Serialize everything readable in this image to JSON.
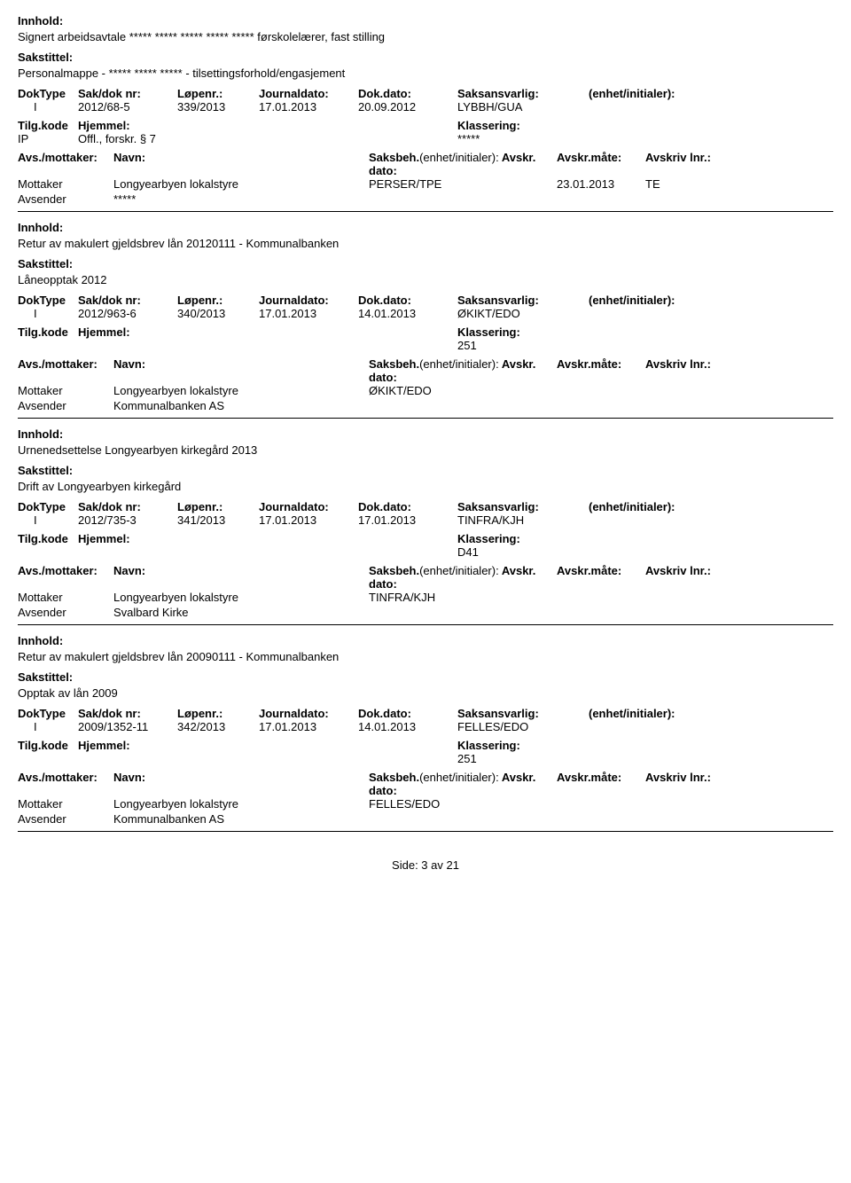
{
  "labels": {
    "innhold": "Innhold:",
    "sakstittel": "Sakstittel:",
    "doktype": "DokType",
    "sakdok": "Sak/dok nr:",
    "lopenr": "Løpenr.:",
    "journaldato": "Journaldato:",
    "dokdato": "Dok.dato:",
    "saksansvarlig": "Saksansvarlig:",
    "enhet": "(enhet/initialer):",
    "tilgkode": "Tilg.kode",
    "hjemmel": "Hjemmel:",
    "klassering": "Klassering:",
    "avsmottaker": "Avs./mottaker:",
    "navn": "Navn:",
    "saksbeh": "Saksbeh.",
    "saksbeh_enhet": "(enhet/initialer):",
    "avskr_dato": "Avskr. dato:",
    "avskr_mate": "Avskr.måte:",
    "avskriv_lnr": "Avskriv lnr.:",
    "mottaker": "Mottaker",
    "avsender": "Avsender"
  },
  "entries": [
    {
      "innhold": "Signert arbeidsavtale ***** ***** ***** ***** ***** førskolelærer, fast stilling",
      "sakstittel": "Personalmappe - ***** ***** ***** - tilsettingsforhold/engasjement",
      "doktype": "I",
      "sakdok": "2012/68-5",
      "lopenr": "339/2013",
      "journaldato": "17.01.2013",
      "dokdato": "20.09.2012",
      "saksansvarlig": "LYBBH/GUA",
      "tilgkode": "IP",
      "hjemmel": "Offl., forskr. § 7",
      "klassering": "*****",
      "mottaker_navn": "Longyearbyen lokalstyre",
      "saksbeh": "PERSER/TPE",
      "avskr_dato": "23.01.2013",
      "avskr_mate": "TE",
      "avsender_navn": "*****"
    },
    {
      "innhold": "Retur av makulert gjeldsbrev lån 20120111 - Kommunalbanken",
      "sakstittel": "Låneopptak 2012",
      "doktype": "I",
      "sakdok": "2012/963-6",
      "lopenr": "340/2013",
      "journaldato": "17.01.2013",
      "dokdato": "14.01.2013",
      "saksansvarlig": "ØKIKT/EDO",
      "tilgkode": "",
      "hjemmel": "",
      "klassering": "251",
      "mottaker_navn": "Longyearbyen lokalstyre",
      "saksbeh": "ØKIKT/EDO",
      "avskr_dato": "",
      "avskr_mate": "",
      "avsender_navn": "Kommunalbanken AS"
    },
    {
      "innhold": "Urnenedsettelse Longyearbyen kirkegård 2013",
      "sakstittel": "Drift av Longyearbyen kirkegård",
      "doktype": "I",
      "sakdok": "2012/735-3",
      "lopenr": "341/2013",
      "journaldato": "17.01.2013",
      "dokdato": "17.01.2013",
      "saksansvarlig": "TINFRA/KJH",
      "tilgkode": "",
      "hjemmel": "",
      "klassering": "D41",
      "mottaker_navn": "Longyearbyen lokalstyre",
      "saksbeh": "TINFRA/KJH",
      "avskr_dato": "",
      "avskr_mate": "",
      "avsender_navn": "Svalbard Kirke"
    },
    {
      "innhold": "Retur av makulert gjeldsbrev lån 20090111 - Kommunalbanken",
      "sakstittel": "Opptak av lån 2009",
      "doktype": "I",
      "sakdok": "2009/1352-11",
      "lopenr": "342/2013",
      "journaldato": "17.01.2013",
      "dokdato": "14.01.2013",
      "saksansvarlig": "FELLES/EDO",
      "tilgkode": "",
      "hjemmel": "",
      "klassering": "251",
      "mottaker_navn": "Longyearbyen lokalstyre",
      "saksbeh": "FELLES/EDO",
      "avskr_dato": "",
      "avskr_mate": "",
      "avsender_navn": "Kommunalbanken AS"
    }
  ],
  "footer": "Side: 3 av 21"
}
